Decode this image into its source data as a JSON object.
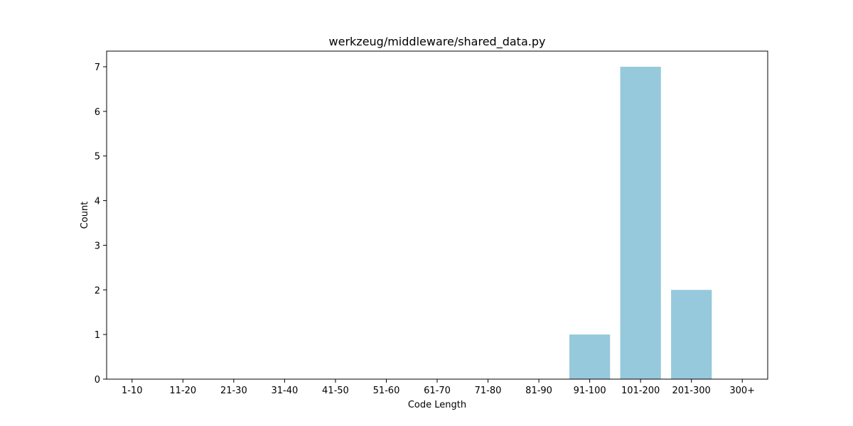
{
  "chart_data": {
    "type": "bar",
    "title": "werkzeug/middleware/shared_data.py",
    "xlabel": "Code Length",
    "ylabel": "Count",
    "categories": [
      "1-10",
      "11-20",
      "21-30",
      "31-40",
      "41-50",
      "51-60",
      "61-70",
      "71-80",
      "81-90",
      "91-100",
      "101-200",
      "201-300",
      "300+"
    ],
    "values": [
      0,
      0,
      0,
      0,
      0,
      0,
      0,
      0,
      0,
      1,
      7,
      2,
      0
    ],
    "yticks": [
      0,
      1,
      2,
      3,
      4,
      5,
      6,
      7
    ],
    "ylim": [
      0,
      7.35
    ],
    "bar_color": "#96c9dc",
    "grid": false,
    "legend": "none"
  }
}
